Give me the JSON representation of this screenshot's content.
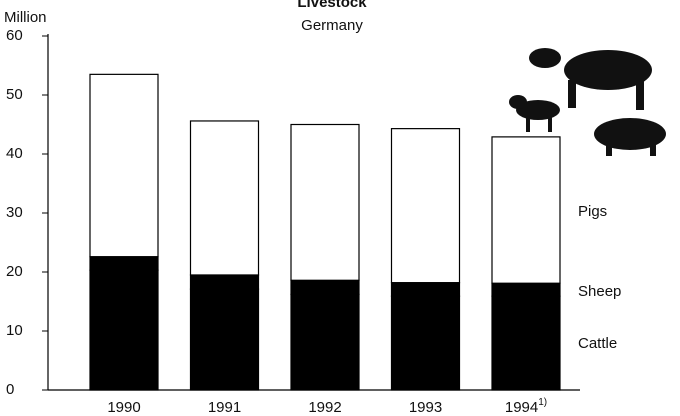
{
  "chart_data": {
    "type": "stacked-bar",
    "title": "Livestock",
    "subtitle": "Germany",
    "y_label": "Million",
    "categories": [
      "1990",
      "1991",
      "1992",
      "1993",
      "1994"
    ],
    "category_notes": [
      null,
      null,
      null,
      null,
      "1)"
    ],
    "series": [
      {
        "name": "Cattle",
        "color": "#000000",
        "values": [
          20.3,
          17.1,
          16.2,
          15.9,
          15.9
        ]
      },
      {
        "name": "Sheep",
        "color": "#000000",
        "values": [
          2.3,
          2.4,
          2.4,
          2.3,
          2.2
        ]
      },
      {
        "name": "Pigs",
        "color": "#ffffff",
        "values": [
          30.9,
          26.1,
          26.4,
          26.1,
          24.8
        ]
      }
    ],
    "ylim": [
      0,
      60
    ],
    "yticks": [
      0,
      10,
      20,
      30,
      40,
      50,
      60
    ]
  }
}
